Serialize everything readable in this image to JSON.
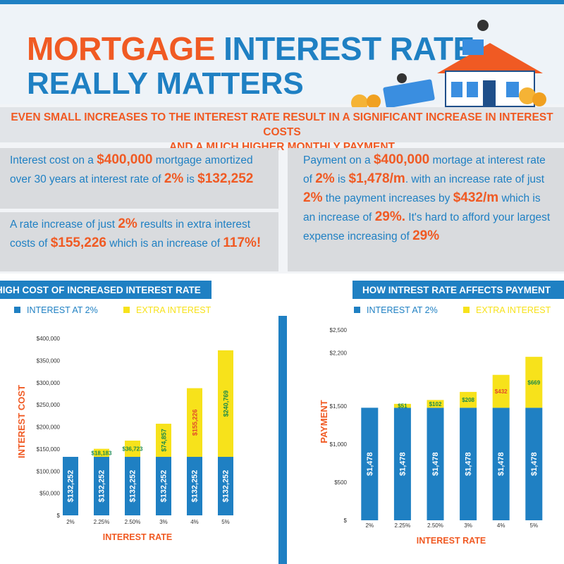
{
  "header": {
    "title_accent": "MORTGAGE",
    "title_rest": "INTEREST RATE",
    "title_line2": "REALLY MATTERS"
  },
  "subtitle": [
    "EVEN SMALL INCREASES TO THE INTEREST RATE RESULT IN A SIGNIFICANT INCREASE IN INTEREST COSTS",
    "AND A MUCH HIGHER MONTHLY PAYMENT"
  ],
  "panels": [
    {
      "runs": [
        {
          "text": "Interest cost on a ",
          "highlight": false
        },
        {
          "text": "$400,000",
          "highlight": true
        },
        {
          "text": " mortgage amortized over 30 years at  interest rate of ",
          "highlight": false
        },
        {
          "text": "2%",
          "highlight": true
        },
        {
          "text": " is ",
          "highlight": false
        },
        {
          "text": "$132,252",
          "highlight": true
        }
      ]
    },
    {
      "runs": [
        {
          "text": "A rate increase of just ",
          "highlight": false
        },
        {
          "text": "2%",
          "highlight": true
        },
        {
          "text": " results in extra interest costs of ",
          "highlight": false
        },
        {
          "text": "$155,226",
          "highlight": true
        },
        {
          "text": " which is an increase of  ",
          "highlight": false
        },
        {
          "text": "117%!",
          "highlight": true
        }
      ]
    },
    {
      "runs": [
        {
          "text": "Payment on a ",
          "highlight": false
        },
        {
          "text": "$400,000",
          "highlight": true
        },
        {
          "text": " mortage at interest rate  of ",
          "highlight": false
        },
        {
          "text": "2%",
          "highlight": true
        },
        {
          "text": " is ",
          "highlight": false
        },
        {
          "text": "$1,478/m",
          "highlight": true
        },
        {
          "text": ". with an increase rate of just ",
          "highlight": false
        },
        {
          "text": "2%",
          "highlight": true
        },
        {
          "text": " the payment increases by ",
          "highlight": false
        },
        {
          "text": "$432/m",
          "highlight": true
        },
        {
          "text": " which is an increase of ",
          "highlight": false
        },
        {
          "text": "29%.",
          "highlight": true
        },
        {
          "text": "  It's hard to afford your largest expense increasing of ",
          "highlight": false
        },
        {
          "text": "29%",
          "highlight": true
        }
      ]
    }
  ],
  "chart_data": [
    {
      "type": "bar",
      "stacked": true,
      "title": "HIGH COST OF INCREASED INTEREST RATE",
      "xlabel": "INTEREST RATE",
      "ylabel": "INTEREST COST",
      "categories": [
        "2%",
        "2.25%",
        "2.50%",
        "3%",
        "4%",
        "5%"
      ],
      "series": [
        {
          "name": "INTEREST AT 2%",
          "color": "#1f80c3",
          "values": [
            132252,
            132252,
            132252,
            132252,
            132252,
            132252
          ],
          "value_labels": [
            "$132,252",
            "$132,252",
            "$132,252",
            "$132,252",
            "$132,252",
            "$132,252"
          ],
          "label_colors": [
            "#ffffff",
            "#ffffff",
            "#ffffff",
            "#ffffff",
            "#ffffff",
            "#ffffff"
          ]
        },
        {
          "name": "EXTRA INTEREST",
          "color": "#f7e21b",
          "values": [
            null,
            18183,
            36723,
            74857,
            155226,
            240769
          ],
          "value_labels": [
            null,
            "$18,183",
            "$36,723",
            "$74,857",
            "$155,226",
            "$240,769"
          ],
          "label_colors": [
            null,
            "#1c8a4a",
            "#1c8a4a",
            "#1c8a4a",
            "#e2492a",
            "#1c8a4a"
          ]
        }
      ],
      "ylim": [
        0,
        400000
      ],
      "yticks": [
        {
          "value": 0,
          "label": "$"
        },
        {
          "value": 50000,
          "label": "$50,000"
        },
        {
          "value": 100000,
          "label": "$100,000"
        },
        {
          "value": 150000,
          "label": "$150,000"
        },
        {
          "value": 200000,
          "label": "$200,000"
        },
        {
          "value": 250000,
          "label": "$250,000"
        },
        {
          "value": 300000,
          "label": "$300,000"
        },
        {
          "value": 350000,
          "label": "$350,000"
        },
        {
          "value": 400000,
          "label": "$400,000"
        }
      ],
      "legend": "top"
    },
    {
      "type": "bar",
      "stacked": true,
      "title": "HOW INTREST RATE AFFECTS PAYMENT",
      "xlabel": "INTEREST RATE",
      "ylabel": "PAYMENT",
      "categories": [
        "2%",
        "2.25%",
        "2.50%",
        "3%",
        "4%",
        "5%"
      ],
      "series": [
        {
          "name": "INTEREST AT 2%",
          "color": "#1f80c3",
          "values": [
            1478,
            1478,
            1478,
            1478,
            1478,
            1478
          ],
          "value_labels": [
            "$1,478",
            "$1,478",
            "$1,478",
            "$1,478",
            "$1,478",
            "$1,478"
          ],
          "label_colors": [
            "#ffffff",
            "#ffffff",
            "#ffffff",
            "#ffffff",
            "#ffffff",
            "#ffffff"
          ]
        },
        {
          "name": "EXTRA INTEREST",
          "color": "#f7e21b",
          "values": [
            null,
            51,
            102,
            208,
            432,
            669
          ],
          "value_labels": [
            null,
            "$51",
            "$102",
            "$208",
            "$432",
            "$669"
          ],
          "label_colors": [
            null,
            "#1c8a4a",
            "#1c8a4a",
            "#1c8a4a",
            "#e2492a",
            "#1c8a4a"
          ]
        }
      ],
      "ylim": [
        0,
        2500
      ],
      "yticks": [
        {
          "value": 0,
          "label": "$"
        },
        {
          "value": 500,
          "label": "$500"
        },
        {
          "value": 1000,
          "label": "$1,000"
        },
        {
          "value": 1500,
          "label": "$1,500"
        },
        {
          "value": 2200,
          "label": "$2,200"
        },
        {
          "value": 2500,
          "label": "$2,500"
        }
      ],
      "legend": "top"
    }
  ]
}
